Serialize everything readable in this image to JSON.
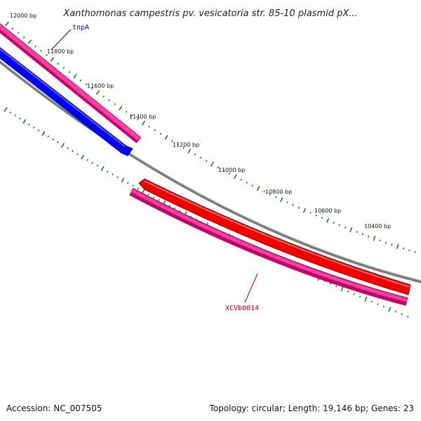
{
  "title": "Xanthomonas campestris pv. vesicatoria str. 85-10 plasmid pX...",
  "footer": {
    "accession": "Accession: NC_007505",
    "summary": "Topology: circular; Length: 19,146 bp; Genes: 23"
  },
  "ticks": [
    {
      "label": "12000 bp"
    },
    {
      "label": "11800 bp"
    },
    {
      "label": "11600 bp"
    },
    {
      "label": "11400 bp"
    },
    {
      "label": "11200 bp"
    },
    {
      "label": "11000 bp"
    },
    {
      "label": "10800 bp"
    },
    {
      "label": "10600 bp"
    },
    {
      "label": "10400 bp"
    }
  ],
  "genes": [
    {
      "name": "tnpA",
      "color": "#0000cc"
    },
    {
      "name": "XCVb0014",
      "color": "#cc0000"
    }
  ],
  "colors": {
    "cds_magenta": "#e8137f",
    "gene_blue": "#0000ee",
    "gene_red": "#ee0000",
    "backbone": "#808080",
    "tick_green": "#1a7a1a"
  }
}
